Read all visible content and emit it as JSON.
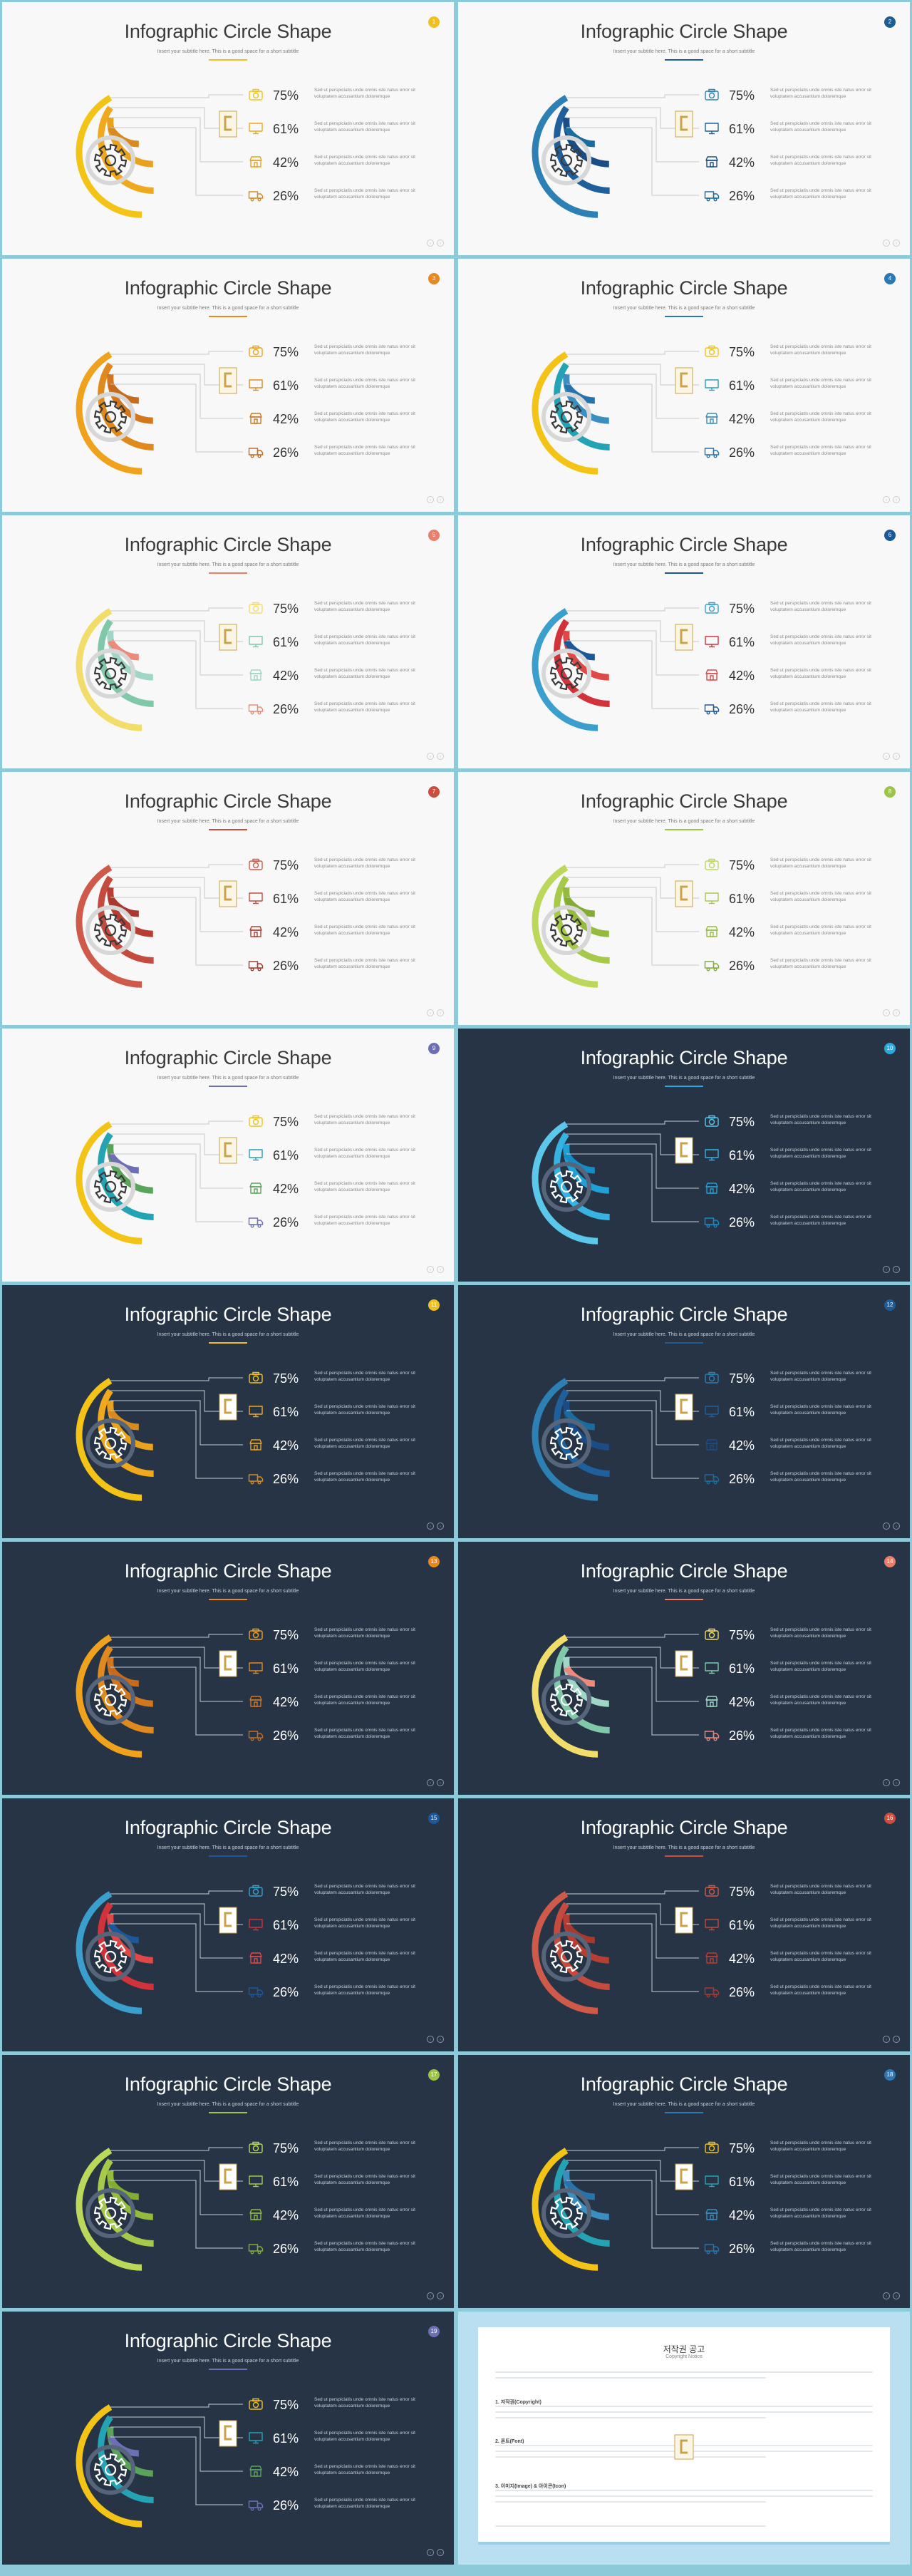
{
  "slide_title": "Infographic Circle Shape",
  "slide_subtitle": "Insert your subtitle here. This is a good space for a short subtitle",
  "items": [
    {
      "icon": "camera-icon",
      "percent": "75%"
    },
    {
      "icon": "monitor-icon",
      "percent": "61%"
    },
    {
      "icon": "shop-icon",
      "percent": "42%"
    },
    {
      "icon": "truck-icon",
      "percent": "26%"
    }
  ],
  "description": "Sed ut perspiciatis unde omnis iste natus error sit voluptatem accusantium doloremque",
  "slides": [
    {
      "theme": "light",
      "colors": [
        "#f3c316",
        "#f0a81c",
        "#e8a21e",
        "#d98a1f"
      ],
      "badge": "#f0c020"
    },
    {
      "theme": "light",
      "colors": [
        "#2c80b4",
        "#1f5f9c",
        "#1a4c86",
        "#1b6c9e"
      ],
      "badge": "#1e5c96"
    },
    {
      "theme": "light",
      "colors": [
        "#f0a21c",
        "#e08a1e",
        "#d2771e",
        "#c66a1c"
      ],
      "badge": "#e8881d"
    },
    {
      "theme": "light",
      "colors": [
        "#f3c316",
        "#24a3b5",
        "#3a8fc0",
        "#2774ac"
      ],
      "badge": "#2c78b5"
    },
    {
      "theme": "light",
      "colors": [
        "#f3dd6a",
        "#7fc9a8",
        "#9fd6c6",
        "#ec8a7b"
      ],
      "badge": "#ec7d6b"
    },
    {
      "theme": "light",
      "colors": [
        "#3a9fcc",
        "#d2323a",
        "#e04848",
        "#1c5799"
      ],
      "badge": "#1c5799"
    },
    {
      "theme": "light",
      "colors": [
        "#cf5a4a",
        "#c44b3d",
        "#b73e32",
        "#a9382e"
      ],
      "badge": "#cc4d3e"
    },
    {
      "theme": "light",
      "colors": [
        "#bcd85a",
        "#a7c94a",
        "#94bb3d",
        "#83ad32"
      ],
      "badge": "#9cc545"
    },
    {
      "theme": "light",
      "colors": [
        "#f3c316",
        "#24a3b5",
        "#5aa35a",
        "#6c6fb4"
      ],
      "badge": "#6c6fb4"
    },
    {
      "theme": "dark",
      "colors": [
        "#5bc7ea",
        "#37b3e3",
        "#1fa0d6",
        "#148cc5"
      ],
      "badge": "#2aa9e0"
    },
    {
      "theme": "dark",
      "colors": [
        "#f3c316",
        "#f0a81c",
        "#e8a21e",
        "#d98a1f"
      ],
      "badge": "#f0c020"
    },
    {
      "theme": "dark",
      "colors": [
        "#2c80b4",
        "#1f5f9c",
        "#1a4c86",
        "#1b6c9e"
      ],
      "badge": "#1e5c96"
    },
    {
      "theme": "dark",
      "colors": [
        "#f0a21c",
        "#e08a1e",
        "#d2771e",
        "#c66a1c"
      ],
      "badge": "#e8881d"
    },
    {
      "theme": "dark",
      "colors": [
        "#f3dd6a",
        "#7fc9a8",
        "#9fd6c6",
        "#ec8a7b"
      ],
      "badge": "#ec7d6b"
    },
    {
      "theme": "dark",
      "colors": [
        "#3a9fcc",
        "#d2323a",
        "#e04848",
        "#1c5799"
      ],
      "badge": "#1c5799"
    },
    {
      "theme": "dark",
      "colors": [
        "#cf5a4a",
        "#c44b3d",
        "#b73e32",
        "#a9382e"
      ],
      "badge": "#cc4d3e"
    },
    {
      "theme": "dark",
      "colors": [
        "#bcd85a",
        "#a7c94a",
        "#94bb3d",
        "#83ad32"
      ],
      "badge": "#9cc545"
    },
    {
      "theme": "dark",
      "colors": [
        "#f3c316",
        "#24a3b5",
        "#3a8fc0",
        "#2774ac"
      ],
      "badge": "#2c78b5"
    },
    {
      "theme": "dark",
      "colors": [
        "#f3c316",
        "#24a3b5",
        "#5aa35a",
        "#6c6fb4"
      ],
      "badge": "#6c6fb4"
    }
  ],
  "notice": {
    "title": "저작권 공고",
    "subtitle": "Copyright Notice",
    "headings": [
      "1. 저작권(Copyright)",
      "2. 폰트(Font)",
      "3. 이미지(Image) & 아이콘(Icon)"
    ]
  }
}
